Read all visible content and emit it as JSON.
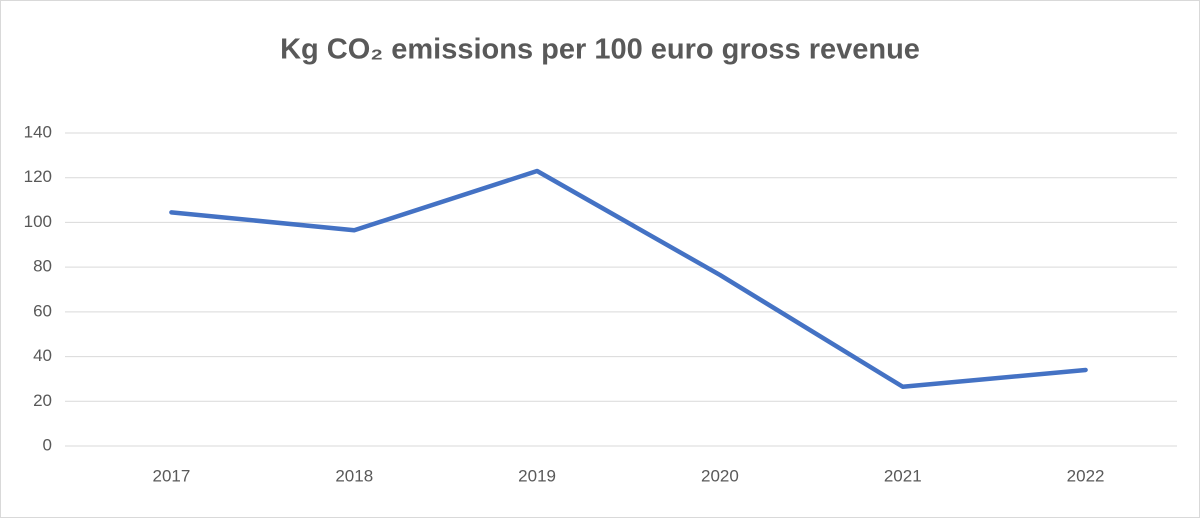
{
  "chart_data": {
    "type": "line",
    "title": "Kg CO₂ emissions per 100 euro gross revenue",
    "categories": [
      "2017",
      "2018",
      "2019",
      "2020",
      "2021",
      "2022"
    ],
    "series": [
      {
        "name": null,
        "color": "#4472c4",
        "values": [
          104.5,
          96.5,
          123,
          76.5,
          26.5,
          34
        ]
      }
    ],
    "ylim": [
      0,
      140
    ],
    "yticks": [
      0,
      20,
      40,
      60,
      80,
      100,
      120,
      140
    ],
    "grid": true
  }
}
